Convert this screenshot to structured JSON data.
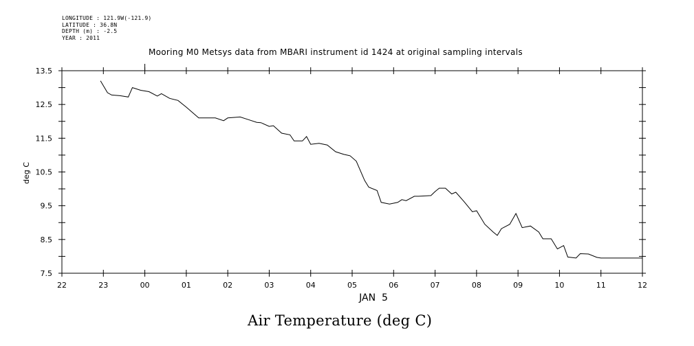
{
  "metadata": {
    "longitude": "LONGITUDE : 121.9W(-121.9)",
    "latitude": "LATITUDE : 36.8N",
    "depth": "DEPTH (m) : -2.5",
    "year": "YEAR : 2011"
  },
  "chart_data": {
    "type": "line",
    "title": "Mooring M0 Metsys data from MBARI instrument id 1424 at original sampling intervals",
    "caption": "Air Temperature (deg C)",
    "xlabel": "JAN  5",
    "ylabel": "deg C",
    "x_ticks": [
      "22",
      "23",
      "00",
      "01",
      "02",
      "03",
      "04",
      "05",
      "06",
      "07",
      "08",
      "09",
      "10",
      "11",
      "12"
    ],
    "y_ticks": [
      "13.5",
      "12.5",
      "11.5",
      "10.5",
      "9.5",
      "8.5",
      "7.5"
    ],
    "xlim_hours": [
      22,
      36
    ],
    "ylim": [
      7.5,
      13.5
    ],
    "grid": false,
    "series": [
      {
        "x_hours": [
          22.93,
          23.1,
          23.2,
          23.4,
          23.6,
          23.7,
          23.9,
          24.1,
          24.3,
          24.4,
          24.6,
          24.8,
          25.0,
          25.3,
          25.5,
          25.7,
          25.9,
          26.0,
          26.3,
          26.5,
          26.7,
          26.8,
          27.0,
          27.1,
          27.3,
          27.5,
          27.6,
          27.8,
          27.9,
          28.0,
          28.2,
          28.4,
          28.6,
          28.8,
          28.95,
          29.1,
          29.3,
          29.4,
          29.6,
          29.7,
          29.9,
          30.1,
          30.2,
          30.3,
          30.5,
          30.6,
          30.9,
          31.0,
          31.1,
          31.25,
          31.4,
          31.5,
          31.7,
          31.9,
          32.0,
          32.2,
          32.4,
          32.5,
          32.6,
          32.8,
          32.95,
          33.1,
          33.3,
          33.5,
          33.6,
          33.8,
          33.95,
          34.1,
          34.2,
          34.4,
          34.5,
          34.7,
          34.9,
          35.0,
          35.1,
          35.3,
          35.4,
          35.6,
          35.8,
          35.97,
          36.0
        ],
        "values": [
          13.2,
          12.85,
          12.78,
          12.76,
          12.72,
          13.0,
          12.92,
          12.88,
          12.75,
          12.82,
          12.68,
          12.62,
          12.42,
          12.1,
          12.1,
          12.1,
          12.02,
          12.1,
          12.13,
          12.05,
          11.97,
          11.96,
          11.85,
          11.87,
          11.65,
          11.6,
          11.42,
          11.42,
          11.55,
          11.32,
          11.35,
          11.3,
          11.1,
          11.02,
          10.98,
          10.82,
          10.25,
          10.05,
          9.95,
          9.6,
          9.55,
          9.6,
          9.68,
          9.65,
          9.78,
          9.78,
          9.8,
          9.92,
          10.02,
          10.02,
          9.85,
          9.9,
          9.62,
          9.32,
          9.35,
          8.95,
          8.72,
          8.62,
          8.82,
          8.95,
          9.27,
          8.85,
          8.9,
          8.72,
          8.52,
          8.52,
          8.22,
          8.32,
          7.98,
          7.95,
          8.08,
          8.07,
          7.97,
          7.95,
          7.95,
          7.95,
          7.95,
          7.95,
          7.95,
          7.95,
          7.95
        ]
      }
    ]
  }
}
